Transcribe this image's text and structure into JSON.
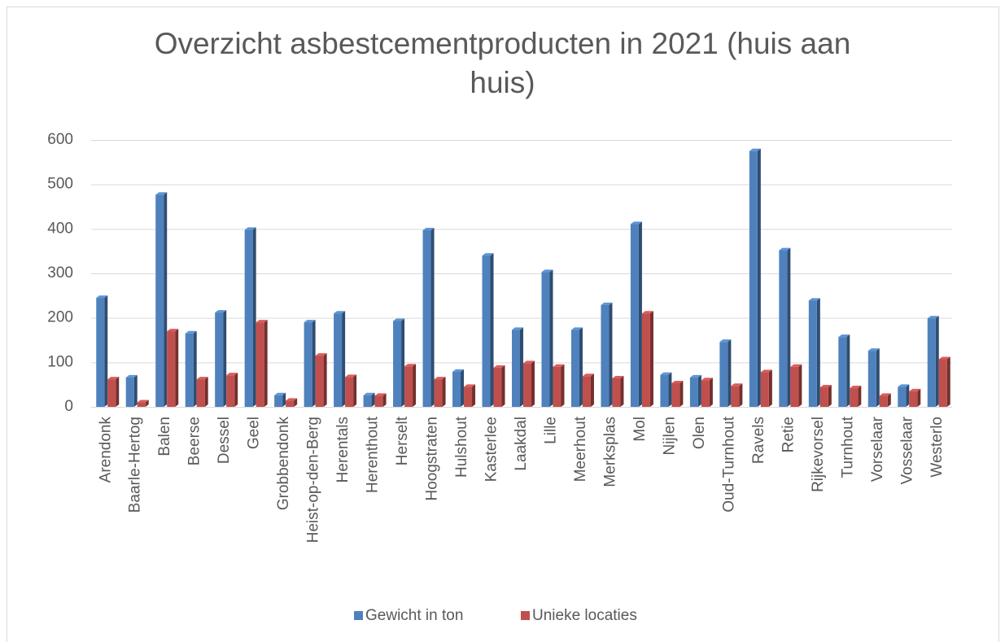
{
  "chart_data": {
    "type": "bar",
    "title": "Overzicht asbestcementproducten in 2021 (huis aan huis)",
    "categories": [
      "Arendonk",
      "Baarle-Hertog",
      "Balen",
      "Beerse",
      "Dessel",
      "Geel",
      "Grobbendonk",
      "Heist-op-den-Berg",
      "Herentals",
      "Herenthout",
      "Herselt",
      "Hoogstraten",
      "Hulshout",
      "Kasterlee",
      "Laakdal",
      "Lille",
      "Meerhout",
      "Merksplas",
      "Mol",
      "Nijlen",
      "Olen",
      "Oud-Turnhout",
      "Ravels",
      "Retie",
      "Rijkevorsel",
      "Turnhout",
      "Vorselaar",
      "Vosselaar",
      "Westerlo"
    ],
    "series": [
      {
        "name": "Gewicht in ton",
        "color": "#4f81bd",
        "values": [
          245,
          66,
          477,
          165,
          212,
          398,
          26,
          190,
          210,
          26,
          193,
          397,
          79,
          340,
          173,
          303,
          173,
          229,
          411,
          72,
          66,
          146,
          575,
          352,
          239,
          157,
          126,
          45,
          199
        ]
      },
      {
        "name": "Unieke locaties",
        "color": "#c0504d",
        "values": [
          62,
          10,
          170,
          62,
          71,
          190,
          14,
          115,
          67,
          25,
          91,
          62,
          45,
          88,
          98,
          90,
          69,
          64,
          210,
          53,
          60,
          47,
          78,
          90,
          44,
          42,
          25,
          35,
          107
        ]
      }
    ],
    "ylim": [
      0,
      600
    ],
    "yticks": [
      0,
      100,
      200,
      300,
      400,
      500,
      600
    ],
    "grid": true,
    "legend": "bottom"
  }
}
